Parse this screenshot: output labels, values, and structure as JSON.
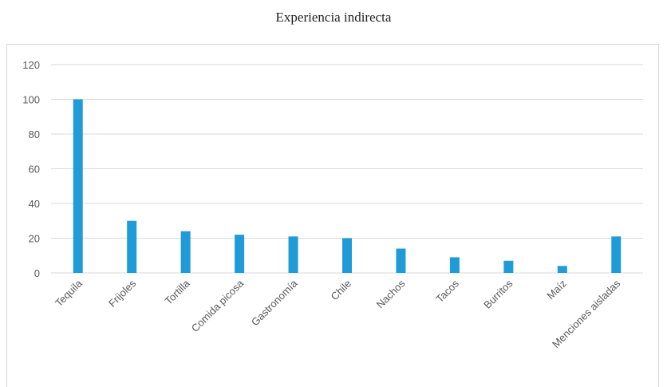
{
  "chart_data": {
    "type": "bar",
    "title": "Experiencia indirecta",
    "categories": [
      "Tequila",
      "Frijoles",
      "Tortilla",
      "Comida picosa",
      "Gastronomía",
      "Chile",
      "Nachos",
      "Tacos",
      "Burritos",
      "Maíz",
      "Menciones aisladas"
    ],
    "values": [
      100,
      30,
      24,
      22,
      21,
      20,
      14,
      9,
      7,
      4,
      21
    ],
    "xlabel": "",
    "ylabel": "",
    "ylim": [
      0,
      120
    ],
    "yticks": [
      0,
      20,
      40,
      60,
      80,
      100,
      120
    ],
    "grid": true,
    "legend": "none",
    "colors": {
      "bar": "#1f9bd7",
      "grid": "#d9d9d9",
      "tick_text": "#595959"
    }
  }
}
